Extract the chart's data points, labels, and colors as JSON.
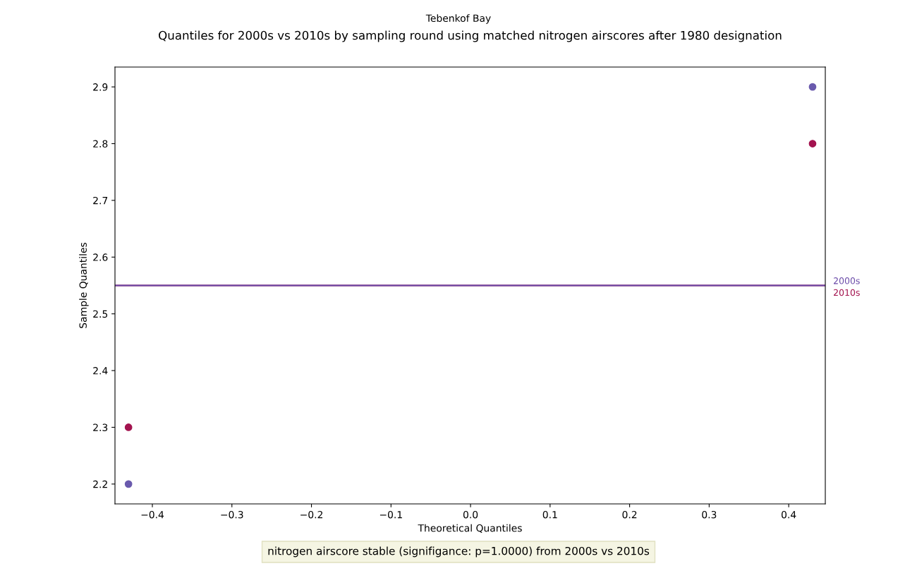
{
  "chart_data": {
    "type": "scatter",
    "subtitle": "Tebenkof Bay",
    "title": "Quantiles for 2000s vs 2010s by sampling round using matched nitrogen airscores after 1980 designation",
    "xlabel": "Theoretical Quantiles",
    "ylabel": "Sample Quantiles",
    "x": [
      -0.43,
      0.43
    ],
    "series": [
      {
        "color": "#6a5aad",
        "values": [
          2.2,
          2.9
        ]
      },
      {
        "color": "#a3134f",
        "values": [
          2.3,
          2.8
        ]
      }
    ],
    "ref_lines": [
      {
        "axis": "y",
        "value": 2.55,
        "label": "2010s",
        "color": "#a3134f"
      },
      {
        "axis": "y",
        "value": 2.55,
        "label": "2000s",
        "color": "#6a4aa8"
      }
    ],
    "xlim": [
      -0.447,
      0.446
    ],
    "ylim": [
      2.165,
      2.935
    ],
    "xticks": [
      {
        "value": -0.4,
        "label": "−0.4"
      },
      {
        "value": -0.3,
        "label": "−0.3"
      },
      {
        "value": -0.2,
        "label": "−0.2"
      },
      {
        "value": -0.1,
        "label": "−0.1"
      },
      {
        "value": 0.0,
        "label": "0.0"
      },
      0.1,
      0.2,
      0.3,
      0.4
    ],
    "yticks": [
      2.2,
      2.3,
      2.4,
      2.5,
      2.6,
      2.7,
      2.8,
      2.9
    ],
    "grid": false,
    "legend": false,
    "marker": "circle",
    "annotations": [
      "nitrogen airscore stable (signifigance: p=1.0000) from 2000s vs 2010s"
    ]
  }
}
